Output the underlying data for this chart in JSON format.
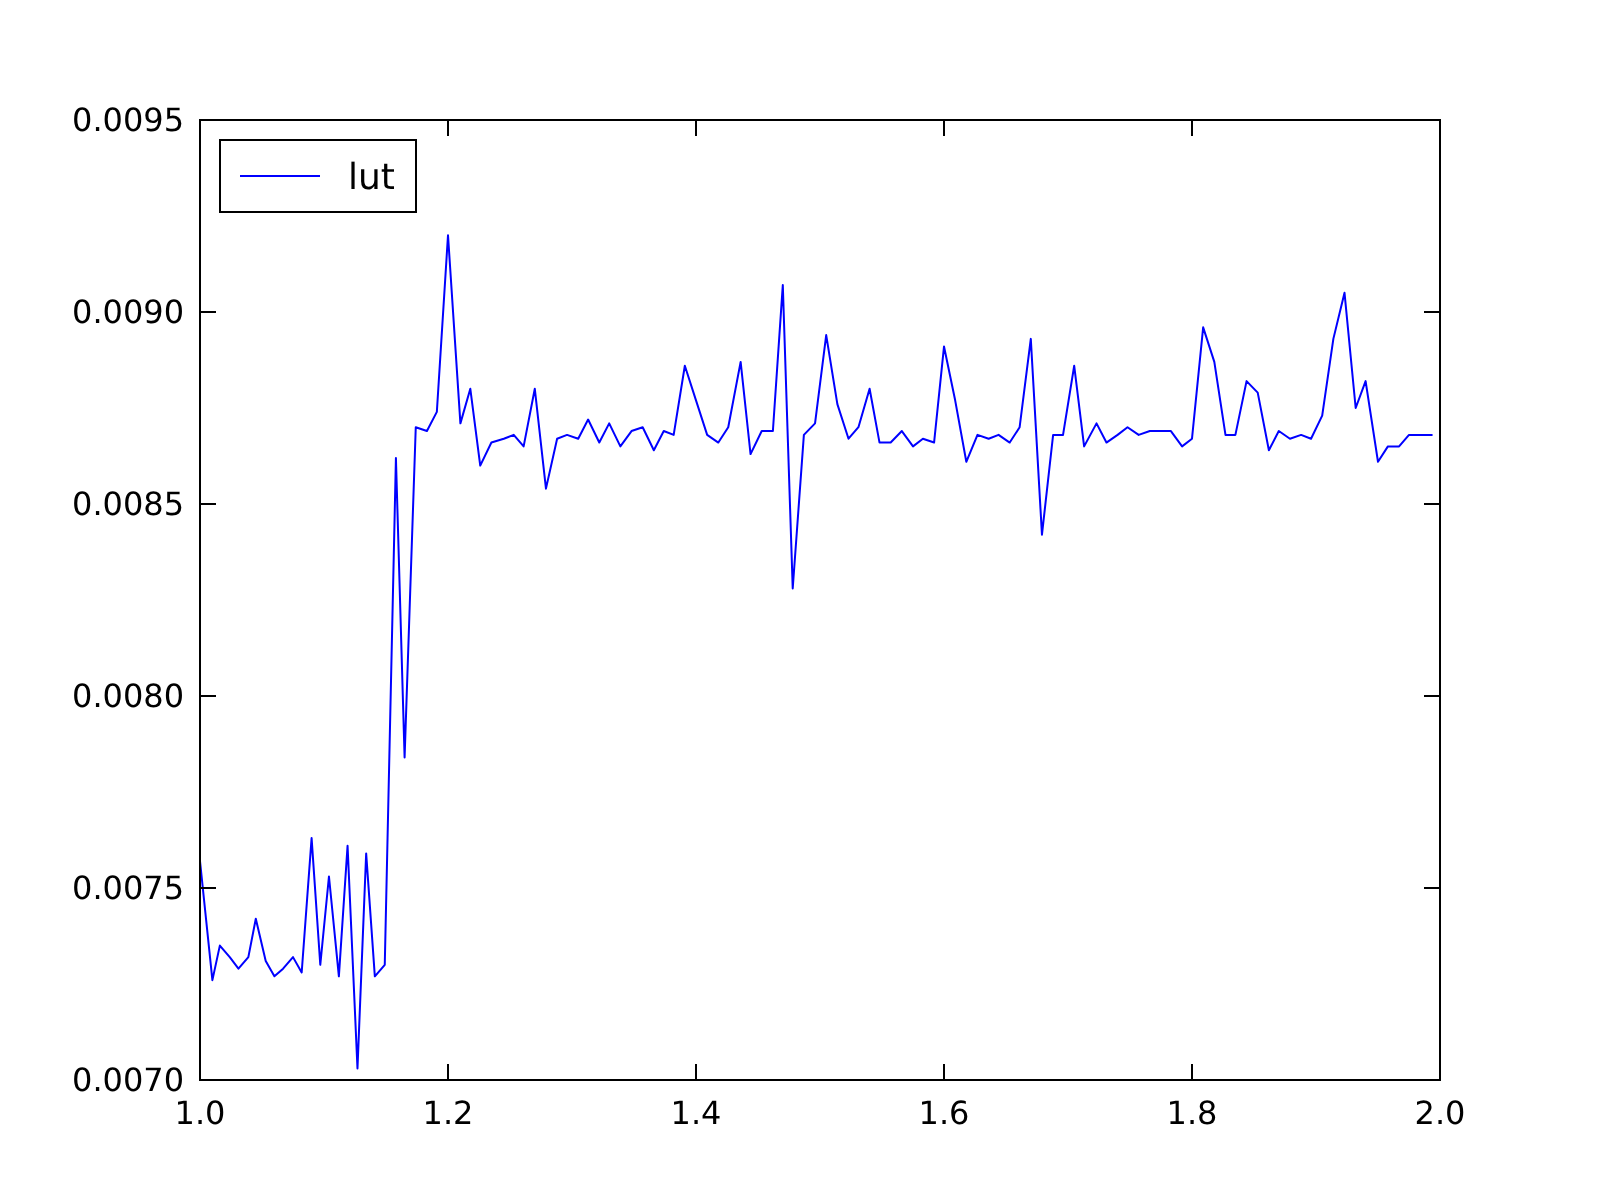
{
  "chart_data": {
    "type": "line",
    "xlim": [
      1.0,
      2.0
    ],
    "ylim": [
      0.007,
      0.0095
    ],
    "xticks": [
      {
        "value": 1.0,
        "label": "1.0"
      },
      {
        "value": 1.2,
        "label": "1.2"
      },
      {
        "value": 1.4,
        "label": "1.4"
      },
      {
        "value": 1.6,
        "label": "1.6"
      },
      {
        "value": 1.8,
        "label": "1.8"
      },
      {
        "value": 2.0,
        "label": "2.0"
      }
    ],
    "yticks": [
      {
        "value": 0.007,
        "label": "0.0070"
      },
      {
        "value": 0.0075,
        "label": "0.0075"
      },
      {
        "value": 0.008,
        "label": "0.0080"
      },
      {
        "value": 0.0085,
        "label": "0.0085"
      },
      {
        "value": 0.009,
        "label": "0.0090"
      },
      {
        "value": 0.0095,
        "label": "0.0095"
      }
    ],
    "legend": "top left",
    "grid": false,
    "marker": "none",
    "line_style": "solid",
    "series": [
      {
        "name": "lut",
        "color": "#0000ff",
        "x": [
          1.0,
          1.01,
          1.016,
          1.024,
          1.031,
          1.039,
          1.045,
          1.053,
          1.06,
          1.067,
          1.075,
          1.082,
          1.09,
          1.097,
          1.104,
          1.112,
          1.119,
          1.127,
          1.134,
          1.141,
          1.149,
          1.158,
          1.165,
          1.174,
          1.183,
          1.191,
          1.2,
          1.21,
          1.218,
          1.226,
          1.235,
          1.245,
          1.253,
          1.261,
          1.27,
          1.279,
          1.288,
          1.296,
          1.305,
          1.313,
          1.322,
          1.33,
          1.339,
          1.348,
          1.357,
          1.366,
          1.374,
          1.382,
          1.391,
          1.4,
          1.409,
          1.418,
          1.426,
          1.436,
          1.444,
          1.453,
          1.462,
          1.47,
          1.478,
          1.487,
          1.496,
          1.505,
          1.514,
          1.523,
          1.531,
          1.54,
          1.548,
          1.557,
          1.566,
          1.575,
          1.583,
          1.592,
          1.6,
          1.609,
          1.618,
          1.627,
          1.636,
          1.644,
          1.653,
          1.661,
          1.67,
          1.679,
          1.688,
          1.696,
          1.705,
          1.713,
          1.723,
          1.731,
          1.74,
          1.748,
          1.757,
          1.766,
          1.774,
          1.783,
          1.792,
          1.8,
          1.809,
          1.818,
          1.827,
          1.835,
          1.844,
          1.853,
          1.862,
          1.87,
          1.879,
          1.888,
          1.896,
          1.905,
          1.914,
          1.923,
          1.932,
          1.94,
          1.95,
          1.958,
          1.967,
          1.975,
          1.984,
          1.994
        ],
        "values": [
          0.00757,
          0.00726,
          0.00735,
          0.00732,
          0.00729,
          0.00732,
          0.00742,
          0.00731,
          0.00727,
          0.00729,
          0.00732,
          0.00728,
          0.00763,
          0.0073,
          0.00753,
          0.00727,
          0.00761,
          0.00703,
          0.00759,
          0.00727,
          0.0073,
          0.00862,
          0.00784,
          0.0087,
          0.00869,
          0.00874,
          0.0092,
          0.00871,
          0.0088,
          0.0086,
          0.00866,
          0.00867,
          0.00868,
          0.00865,
          0.0088,
          0.00854,
          0.00867,
          0.00868,
          0.00867,
          0.00872,
          0.00866,
          0.00871,
          0.00865,
          0.00869,
          0.0087,
          0.00864,
          0.00869,
          0.00868,
          0.00886,
          0.00877,
          0.00868,
          0.00866,
          0.0087,
          0.00887,
          0.00863,
          0.00869,
          0.00869,
          0.00907,
          0.00828,
          0.00868,
          0.00871,
          0.00894,
          0.00876,
          0.00867,
          0.0087,
          0.0088,
          0.00866,
          0.00866,
          0.00869,
          0.00865,
          0.00867,
          0.00866,
          0.00891,
          0.00877,
          0.00861,
          0.00868,
          0.00867,
          0.00868,
          0.00866,
          0.0087,
          0.00893,
          0.00842,
          0.00868,
          0.00868,
          0.00886,
          0.00865,
          0.00871,
          0.00866,
          0.00868,
          0.0087,
          0.00868,
          0.00869,
          0.00869,
          0.00869,
          0.00865,
          0.00867,
          0.00896,
          0.00887,
          0.00868,
          0.00868,
          0.00882,
          0.00879,
          0.00864,
          0.00869,
          0.00867,
          0.00868,
          0.00867,
          0.00873,
          0.00893,
          0.00905,
          0.00875,
          0.00882,
          0.00861,
          0.00865,
          0.00865,
          0.00868,
          0.00868,
          0.00868
        ]
      }
    ]
  }
}
